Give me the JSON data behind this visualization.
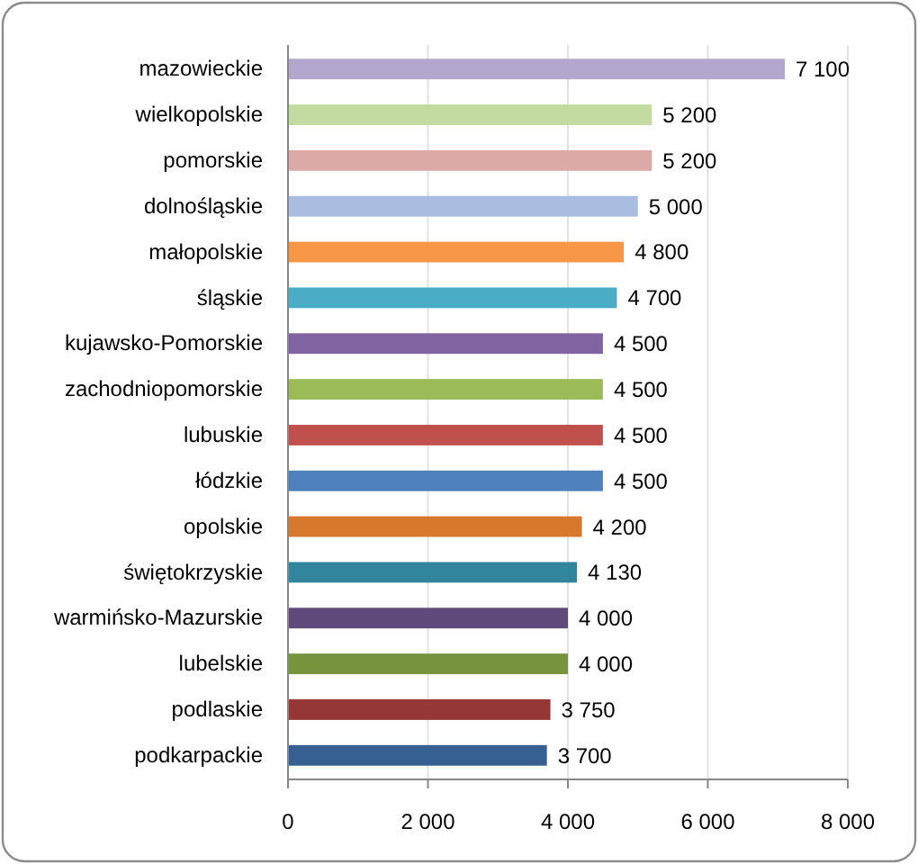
{
  "chart_data": {
    "type": "bar",
    "orientation": "horizontal",
    "categories": [
      "mazowieckie",
      "wielkopolskie",
      "pomorskie",
      "dolnośląskie",
      "małopolskie",
      "śląskie",
      "kujawsko-Pomorskie",
      "zachodniopomorskie",
      "lubuskie",
      "łódzkie",
      "opolskie",
      "świętokrzyskie",
      "warmińsko-Mazurskie",
      "lubelskie",
      "podlaskie",
      "podkarpackie"
    ],
    "values": [
      7100,
      5200,
      5200,
      5000,
      4800,
      4700,
      4500,
      4500,
      4500,
      4500,
      4200,
      4130,
      4000,
      4000,
      3750,
      3700
    ],
    "colors": [
      "#b3a7cd",
      "#c3dba1",
      "#dca8a8",
      "#a8bde0",
      "#f79646",
      "#4bacc6",
      "#8064a2",
      "#9bbb59",
      "#c0504d",
      "#4f81bd",
      "#d7782f",
      "#31859c",
      "#604a7b",
      "#77933c",
      "#953735",
      "#376092"
    ],
    "value_labels": [
      "7 100",
      "5 200",
      "5 200",
      "5 000",
      "4 800",
      "4 700",
      "4 500",
      "4 500",
      "4 500",
      "4 500",
      "4 200",
      "4 130",
      "4 000",
      "4 000",
      "3 750",
      "3 700"
    ],
    "xlim": [
      0,
      8000
    ],
    "xticks": [
      0,
      {
        "value": 2000,
        "label": "2 000"
      },
      {
        "value": 4000,
        "label": "4 000"
      },
      {
        "value": 6000,
        "label": "6 000"
      },
      {
        "value": 8000,
        "label": "8 000"
      }
    ],
    "grid": "x"
  }
}
